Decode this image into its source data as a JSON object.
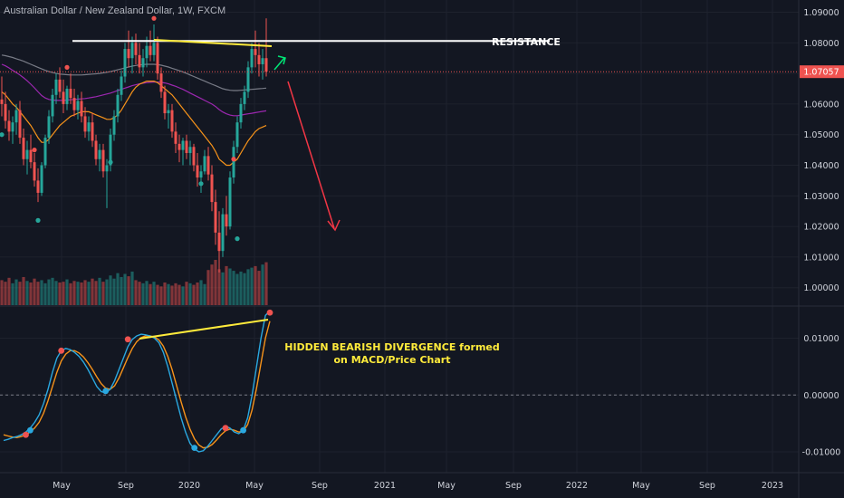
{
  "symbol_title": "Australian Dollar / New Zealand Dollar, 1W, FXCM",
  "annotations": {
    "resistance": "RESISTANCE",
    "divergence_line1": "HIDDEN BEARISH DIVERGENCE formed",
    "divergence_line2": "on MACD/Price Chart"
  },
  "colors": {
    "background": "#131722",
    "up": "#26a69a",
    "down": "#ef5350",
    "trend_yellow": "#ffeb3b",
    "resistance_white": "#ffffff",
    "arrow_red": "#f23645",
    "arrow_green": "#00e676",
    "ma_orange": "#f7931a",
    "ma_purple": "#9c27b0",
    "ma_gray": "#787b86",
    "macd_blue": "#2aa8e0",
    "signal_orange": "#f7931a",
    "last_price_bg": "#ef5350"
  },
  "chart_data": [
    {
      "type": "candlestick",
      "title": "Australian Dollar / New Zealand Dollar, 1W, FXCM",
      "yticks": [
        "1.09000",
        "1.08000",
        "1.07000",
        "1.06000",
        "1.05000",
        "1.04000",
        "1.03000",
        "1.02000",
        "1.01000",
        "1.00000"
      ],
      "ylim": [
        0.994,
        1.094
      ],
      "last_price": "1.07057",
      "resistance_level": 1.0806,
      "xticks": [
        "May",
        "Sep",
        "2020",
        "May",
        "Sep",
        "2021",
        "May",
        "Sep",
        "2022",
        "May",
        "Sep",
        "2023"
      ],
      "candles": [
        [
          1.0615,
          1.069,
          1.056,
          1.06
        ],
        [
          1.06,
          1.064,
          1.052,
          1.0545
        ],
        [
          1.0545,
          1.058,
          1.048,
          1.051
        ],
        [
          1.051,
          1.056,
          1.047,
          1.054
        ],
        [
          1.054,
          1.06,
          1.05,
          1.058
        ],
        [
          1.058,
          1.061,
          1.047,
          1.049
        ],
        [
          1.049,
          1.052,
          1.04,
          1.042
        ],
        [
          1.042,
          1.048,
          1.037,
          1.045
        ],
        [
          1.045,
          1.05,
          1.039,
          1.041
        ],
        [
          1.041,
          1.044,
          1.033,
          1.035
        ],
        [
          1.035,
          1.039,
          1.028,
          1.031
        ],
        [
          1.031,
          1.041,
          1.03,
          1.04
        ],
        [
          1.04,
          1.05,
          1.039,
          1.049
        ],
        [
          1.049,
          1.058,
          1.047,
          1.056
        ],
        [
          1.056,
          1.065,
          1.054,
          1.063
        ],
        [
          1.063,
          1.07,
          1.06,
          1.068
        ],
        [
          1.068,
          1.072,
          1.062,
          1.064
        ],
        [
          1.064,
          1.068,
          1.057,
          1.06
        ],
        [
          1.06,
          1.066,
          1.058,
          1.065
        ],
        [
          1.065,
          1.07,
          1.06,
          1.062
        ],
        [
          1.062,
          1.065,
          1.056,
          1.058
        ],
        [
          1.058,
          1.063,
          1.055,
          1.061
        ],
        [
          1.061,
          1.064,
          1.054,
          1.056
        ],
        [
          1.056,
          1.059,
          1.049,
          1.051
        ],
        [
          1.051,
          1.056,
          1.048,
          1.054
        ],
        [
          1.054,
          1.057,
          1.046,
          1.048
        ],
        [
          1.048,
          1.05,
          1.04,
          1.042
        ],
        [
          1.042,
          1.047,
          1.038,
          1.045
        ],
        [
          1.045,
          1.047,
          1.036,
          1.038
        ],
        [
          1.038,
          1.042,
          1.026,
          1.04
        ],
        [
          1.04,
          1.052,
          1.038,
          1.05
        ],
        [
          1.05,
          1.058,
          1.048,
          1.056
        ],
        [
          1.056,
          1.065,
          1.054,
          1.063
        ],
        [
          1.063,
          1.071,
          1.061,
          1.069
        ],
        [
          1.069,
          1.08,
          1.067,
          1.078
        ],
        [
          1.078,
          1.084,
          1.072,
          1.075
        ],
        [
          1.075,
          1.082,
          1.07,
          1.08
        ],
        [
          1.08,
          1.083,
          1.073,
          1.076
        ],
        [
          1.076,
          1.08,
          1.07,
          1.072
        ],
        [
          1.072,
          1.078,
          1.069,
          1.075
        ],
        [
          1.075,
          1.082,
          1.072,
          1.079
        ],
        [
          1.079,
          1.084,
          1.074,
          1.076
        ],
        [
          1.076,
          1.086,
          1.074,
          1.08
        ],
        [
          1.08,
          1.082,
          1.068,
          1.07
        ],
        [
          1.07,
          1.072,
          1.062,
          1.064
        ],
        [
          1.064,
          1.066,
          1.055,
          1.057
        ],
        [
          1.057,
          1.06,
          1.052,
          1.058
        ],
        [
          1.058,
          1.06,
          1.049,
          1.051
        ],
        [
          1.051,
          1.054,
          1.044,
          1.047
        ],
        [
          1.047,
          1.05,
          1.041,
          1.045
        ],
        [
          1.045,
          1.049,
          1.04,
          1.048
        ],
        [
          1.048,
          1.05,
          1.042,
          1.044
        ],
        [
          1.044,
          1.048,
          1.04,
          1.046
        ],
        [
          1.046,
          1.047,
          1.038,
          1.04
        ],
        [
          1.04,
          1.044,
          1.033,
          1.036
        ],
        [
          1.036,
          1.04,
          1.031,
          1.038
        ],
        [
          1.038,
          1.045,
          1.037,
          1.043
        ],
        [
          1.043,
          1.046,
          1.035,
          1.037
        ],
        [
          1.037,
          1.04,
          1.025,
          1.028
        ],
        [
          1.028,
          1.032,
          1.014,
          1.018
        ],
        [
          1.018,
          1.025,
          1.005,
          1.012
        ],
        [
          1.012,
          1.026,
          1.01,
          1.024
        ],
        [
          1.024,
          1.03,
          1.017,
          1.02
        ],
        [
          1.02,
          1.038,
          1.019,
          1.036
        ],
        [
          1.036,
          1.048,
          1.034,
          1.046
        ],
        [
          1.046,
          1.056,
          1.044,
          1.054
        ],
        [
          1.054,
          1.062,
          1.052,
          1.06
        ],
        [
          1.06,
          1.066,
          1.058,
          1.064
        ],
        [
          1.064,
          1.074,
          1.062,
          1.072
        ],
        [
          1.072,
          1.08,
          1.07,
          1.078
        ],
        [
          1.078,
          1.084,
          1.072,
          1.076
        ],
        [
          1.076,
          1.08,
          1.069,
          1.073
        ],
        [
          1.073,
          1.078,
          1.068,
          1.075
        ],
        [
          1.075,
          1.088,
          1.069,
          1.0706
        ]
      ],
      "volume": [
        32,
        30,
        35,
        28,
        33,
        30,
        36,
        31,
        29,
        34,
        30,
        32,
        28,
        33,
        35,
        31,
        29,
        30,
        33,
        28,
        31,
        30,
        29,
        32,
        30,
        34,
        31,
        35,
        30,
        33,
        38,
        34,
        41,
        36,
        40,
        37,
        43,
        32,
        30,
        28,
        31,
        27,
        30,
        26,
        24,
        29,
        27,
        25,
        28,
        26,
        24,
        30,
        28,
        26,
        29,
        32,
        27,
        45,
        52,
        58,
        46,
        42,
        50,
        47,
        44,
        40,
        43,
        41,
        46,
        48,
        50,
        44,
        52,
        55
      ],
      "ma_orange": [
        1.064,
        1.063,
        1.0615,
        1.06,
        1.059,
        1.0575,
        1.056,
        1.0545,
        1.053,
        1.051,
        1.049,
        1.0475,
        1.0475,
        1.0485,
        1.05,
        1.0515,
        1.053,
        1.054,
        1.055,
        1.056,
        1.0565,
        1.057,
        1.0575,
        1.0575,
        1.0575,
        1.057,
        1.0565,
        1.056,
        1.0555,
        1.055,
        1.055,
        1.0555,
        1.0565,
        1.058,
        1.06,
        1.062,
        1.064,
        1.0655,
        1.0665,
        1.067,
        1.0675,
        1.0675,
        1.0675,
        1.067,
        1.066,
        1.065,
        1.064,
        1.063,
        1.0615,
        1.06,
        1.0585,
        1.057,
        1.0555,
        1.054,
        1.0525,
        1.051,
        1.0495,
        1.048,
        1.0465,
        1.0445,
        1.042,
        1.041,
        1.04,
        1.04,
        1.041,
        1.042,
        1.044,
        1.046,
        1.048,
        1.0495,
        1.051,
        1.052,
        1.0525,
        1.053
      ],
      "ma_purple": [
        1.073,
        1.0725,
        1.0718,
        1.071,
        1.0703,
        1.0695,
        1.0686,
        1.0676,
        1.0665,
        1.0653,
        1.064,
        1.0628,
        1.062,
        1.0615,
        1.0613,
        1.0612,
        1.0612,
        1.0612,
        1.0613,
        1.0614,
        1.0615,
        1.0616,
        1.0617,
        1.0618,
        1.062,
        1.0622,
        1.0624,
        1.0627,
        1.063,
        1.0633,
        1.0636,
        1.064,
        1.0644,
        1.0648,
        1.0652,
        1.0656,
        1.066,
        1.0663,
        1.0666,
        1.0668,
        1.067,
        1.0671,
        1.0672,
        1.0672,
        1.0671,
        1.0669,
        1.0666,
        1.0662,
        1.0658,
        1.0653,
        1.0648,
        1.0642,
        1.0636,
        1.063,
        1.0624,
        1.0618,
        1.0612,
        1.0606,
        1.06,
        1.0592,
        1.0582,
        1.0574,
        1.0568,
        1.0564,
        1.0562,
        1.0562,
        1.0564,
        1.0566,
        1.0568,
        1.057,
        1.0572,
        1.0574,
        1.0576,
        1.0578
      ],
      "ma_gray": [
        1.076,
        1.0758,
        1.0755,
        1.0752,
        1.0748,
        1.0744,
        1.074,
        1.0735,
        1.073,
        1.0725,
        1.072,
        1.0715,
        1.071,
        1.0706,
        1.0703,
        1.07,
        1.0698,
        1.0697,
        1.0696,
        1.0695,
        1.0695,
        1.0695,
        1.0695,
        1.0696,
        1.0697,
        1.0698,
        1.0699,
        1.07,
        1.0702,
        1.0704,
        1.0706,
        1.0709,
        1.0712,
        1.0715,
        1.0718,
        1.0721,
        1.0724,
        1.0726,
        1.0728,
        1.0729,
        1.073,
        1.073,
        1.073,
        1.0729,
        1.0727,
        1.0724,
        1.0721,
        1.0717,
        1.0713,
        1.0709,
        1.0705,
        1.07,
        1.0695,
        1.069,
        1.0685,
        1.068,
        1.0675,
        1.067,
        1.0665,
        1.066,
        1.0655,
        1.065,
        1.0647,
        1.0645,
        1.0644,
        1.0644,
        1.0645,
        1.0646,
        1.0647,
        1.0648,
        1.0649,
        1.065,
        1.0651,
        1.0652
      ],
      "sar_dots": [
        {
          "i": 0,
          "v": 1.05,
          "color": "up"
        },
        {
          "i": 9,
          "v": 1.045,
          "color": "down"
        },
        {
          "i": 10,
          "v": 1.022,
          "color": "up"
        },
        {
          "i": 18,
          "v": 1.072,
          "color": "down"
        },
        {
          "i": 30,
          "v": 1.041,
          "color": "up"
        },
        {
          "i": 42,
          "v": 1.088,
          "color": "down"
        },
        {
          "i": 55,
          "v": 1.034,
          "color": "up"
        },
        {
          "i": 64,
          "v": 1.042,
          "color": "down"
        },
        {
          "i": 65,
          "v": 1.016,
          "color": "up"
        }
      ]
    },
    {
      "type": "line",
      "title": "",
      "yticks": [
        "0.01000",
        "0.00000",
        "-0.01000"
      ],
      "ylim": [
        -0.0135,
        0.0155
      ],
      "zero_line": 0,
      "macd": [
        -0.008,
        -0.0078,
        -0.0075,
        -0.0073,
        -0.007,
        -0.0065,
        -0.0058,
        -0.0048,
        -0.0035,
        -0.0015,
        0.001,
        0.004,
        0.0065,
        0.0078,
        0.0082,
        0.008,
        0.0075,
        0.0068,
        0.0058,
        0.0045,
        0.003,
        0.0015,
        0.0006,
        0.0004,
        0.001,
        0.0025,
        0.0045,
        0.0065,
        0.0085,
        0.0098,
        0.0104,
        0.0107,
        0.0106,
        0.0104,
        0.01,
        0.0092,
        0.0075,
        0.005,
        0.002,
        -0.001,
        -0.004,
        -0.0065,
        -0.0085,
        -0.0095,
        -0.01,
        -0.0098,
        -0.009,
        -0.008,
        -0.007,
        -0.006,
        -0.0055,
        -0.0058,
        -0.0065,
        -0.0068,
        -0.0062,
        -0.004,
        0.0,
        0.005,
        0.01,
        0.014,
        0.0148
      ],
      "signal": [
        -0.007,
        -0.0072,
        -0.0074,
        -0.0075,
        -0.0073,
        -0.007,
        -0.0065,
        -0.0058,
        -0.0048,
        -0.0032,
        -0.001,
        0.0015,
        0.004,
        0.006,
        0.0072,
        0.0078,
        0.0078,
        0.0074,
        0.0067,
        0.0057,
        0.0045,
        0.0032,
        0.002,
        0.0012,
        0.001,
        0.0016,
        0.003,
        0.0048,
        0.0066,
        0.0082,
        0.0094,
        0.0101,
        0.0104,
        0.0104,
        0.0102,
        0.0097,
        0.0086,
        0.0068,
        0.0044,
        0.0016,
        -0.0012,
        -0.0038,
        -0.006,
        -0.0077,
        -0.0088,
        -0.0093,
        -0.0092,
        -0.0087,
        -0.0079,
        -0.007,
        -0.0063,
        -0.006,
        -0.0062,
        -0.0065,
        -0.0064,
        -0.0052,
        -0.0026,
        0.0012,
        0.0056,
        0.01,
        0.013
      ],
      "cross_dots": [
        {
          "i": 5,
          "v": -0.007,
          "color": "down"
        },
        {
          "i": 6,
          "v": -0.0062,
          "color": "macd"
        },
        {
          "i": 13,
          "v": 0.0078,
          "color": "down"
        },
        {
          "i": 23,
          "v": 0.0007,
          "color": "macd"
        },
        {
          "i": 28,
          "v": 0.0098,
          "color": "down"
        },
        {
          "i": 43,
          "v": -0.0093,
          "color": "macd"
        },
        {
          "i": 50,
          "v": -0.0058,
          "color": "down"
        },
        {
          "i": 54,
          "v": -0.0062,
          "color": "macd"
        },
        {
          "i": 60,
          "v": 0.0145,
          "color": "down"
        }
      ]
    }
  ]
}
